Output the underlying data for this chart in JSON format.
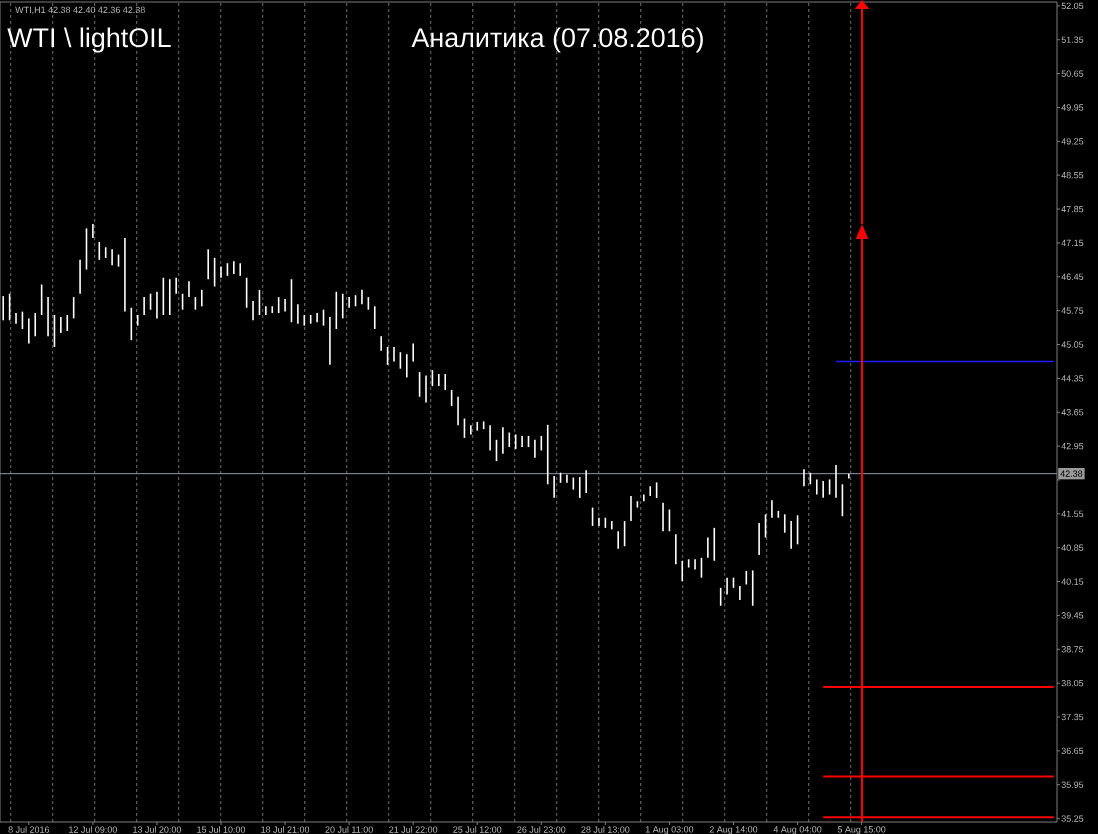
{
  "chart_data": {
    "type": "bar",
    "title": "WTI \\ lightOIL",
    "subtitle": "Аналитика (07.08.2016)",
    "annotations": [
      "WTI,H1 42.38 42.40 42.36 42.38"
    ],
    "categories": [
      null,
      null,
      null,
      null,
      "8 Jul 2016",
      null,
      null,
      null,
      null,
      null,
      null,
      null,
      null,
      null,
      "12 Jul 09:00",
      null,
      null,
      null,
      null,
      null,
      null,
      null,
      null,
      null,
      "13 Jul 20:00",
      null,
      null,
      null,
      null,
      null,
      null,
      null,
      null,
      null,
      "15 Jul 10:00",
      null,
      null,
      null,
      null,
      null,
      null,
      null,
      null,
      null,
      "18 Jul 21:00",
      null,
      null,
      null,
      null,
      null,
      null,
      null,
      null,
      null,
      "20 Jul 11:00",
      null,
      null,
      null,
      null,
      null,
      null,
      null,
      null,
      null,
      "21 Jul 22:00",
      null,
      null,
      null,
      null,
      null,
      null,
      null,
      null,
      null,
      "25 Jul 12:00",
      null,
      null,
      null,
      null,
      null,
      null,
      null,
      null,
      null,
      "26 Jul 23:00",
      null,
      null,
      null,
      null,
      null,
      null,
      null,
      null,
      null,
      "28 Jul 13:00",
      null,
      null,
      null,
      null,
      null,
      null,
      null,
      null,
      null,
      "1 Aug 03:00",
      null,
      null,
      null,
      null,
      null,
      null,
      null,
      null,
      null,
      "2 Aug 14:00",
      null,
      null,
      null,
      null,
      null,
      null,
      null,
      null,
      null,
      "4 Aug 04:00",
      null,
      null,
      null,
      null,
      null,
      null,
      null,
      null,
      null,
      "5 Aug 15:00",
      null,
      null,
      null,
      null,
      null,
      null,
      null,
      null,
      null,
      null,
      null,
      null,
      null,
      null,
      null,
      null,
      null,
      null,
      null,
      null,
      null,
      null,
      null,
      null,
      null,
      null,
      null,
      null,
      null,
      null
    ],
    "ylim": [
      35.18,
      52.13
    ],
    "yticks": [
      35.25,
      35.95,
      36.65,
      37.35,
      38.05,
      38.75,
      39.45,
      40.15,
      40.85,
      41.55,
      {
        "value": 42.25,
        "label": null
      },
      42.95,
      43.65,
      44.35,
      45.05,
      45.75,
      46.45,
      47.15,
      47.85,
      48.55,
      49.25,
      49.95,
      50.65,
      51.35,
      52.05
    ],
    "grid": "x",
    "series": [
      {
        "color": "#ffffff",
        "base": [
          45.55,
          45.55,
          45.48,
          45.37,
          45.07,
          45.22,
          45.66,
          45.22,
          45.0,
          45.29,
          45.33,
          45.59,
          46.1,
          46.6,
          47.25,
          46.8,
          46.84,
          46.69,
          46.66,
          45.73,
          45.14,
          45.44,
          45.66,
          45.77,
          45.59,
          45.66,
          45.66,
          46.1,
          45.77,
          46.03,
          45.77,
          45.84,
          46.4,
          46.25,
          46.43,
          46.47,
          46.51,
          46.47,
          45.81,
          45.55,
          45.66,
          45.66,
          45.7,
          45.7,
          45.73,
          45.51,
          45.48,
          45.44,
          45.48,
          45.51,
          45.44,
          44.63,
          45.37,
          45.59,
          45.81,
          45.84,
          45.88,
          45.77,
          45.37,
          44.92,
          44.63,
          44.7,
          44.55,
          44.37,
          44.7,
          43.97,
          43.85,
          44.19,
          44.19,
          44.11,
          43.78,
          43.38,
          43.12,
          43.19,
          43.27,
          43.3,
          42.86,
          42.64,
          42.79,
          42.93,
          42.89,
          42.93,
          42.93,
          42.71,
          42.86,
          42.16,
          41.88,
          42.19,
          42.19,
          42.05,
          41.88,
          41.98,
          41.3,
          41.3,
          41.26,
          41.23,
          40.83,
          40.88,
          41.4,
          41.68,
          41.81,
          41.92,
          41.88,
          41.19,
          41.19,
          40.51,
          40.16,
          40.44,
          40.4,
          40.23,
          40.64,
          40.58,
          39.65,
          39.88,
          40.02,
          39.77,
          40.09,
          39.65,
          40.7,
          41.06,
          41.47,
          41.47,
          41.16,
          40.83,
          40.92,
          42.12,
          42.16,
          41.95,
          41.88,
          41.95,
          41.88,
          41.5,
          42.28,
          null,
          null,
          null,
          null,
          null,
          null,
          null,
          null,
          null,
          null,
          null,
          null,
          null,
          null,
          null,
          null,
          null,
          null,
          null,
          null,
          null,
          null,
          null,
          null,
          null,
          null,
          null,
          null,
          null,
          null,
          null,
          null
        ],
        "values": [
          0.5,
          0.55,
          0.22,
          0.36,
          0.52,
          0.48,
          0.63,
          0.81,
          0.66,
          0.33,
          0.33,
          0.44,
          0.7,
          0.85,
          0.29,
          0.37,
          0.22,
          0.33,
          0.25,
          1.52,
          0.67,
          0.22,
          0.37,
          0.33,
          0.55,
          0.77,
          0.74,
          0.33,
          0.33,
          0.33,
          0.26,
          0.34,
          0.62,
          0.59,
          0.23,
          0.26,
          0.26,
          0.26,
          0.62,
          0.4,
          0.52,
          0.18,
          0.14,
          0.33,
          0.26,
          0.89,
          0.4,
          0.22,
          0.18,
          0.19,
          0.33,
          0.99,
          0.77,
          0.51,
          0.22,
          0.23,
          0.3,
          0.26,
          0.47,
          0.3,
          0.37,
          0.3,
          0.34,
          0.48,
          0.37,
          0.51,
          0.56,
          0.33,
          0.25,
          0.33,
          0.33,
          0.59,
          0.4,
          0.19,
          0.18,
          0.16,
          0.52,
          0.44,
          0.55,
          0.3,
          0.3,
          0.23,
          0.23,
          0.37,
          0.3,
          1.23,
          0.45,
          0.21,
          0.17,
          0.25,
          0.43,
          0.47,
          0.38,
          0.17,
          0.21,
          0.17,
          0.36,
          0.52,
          0.52,
          0.13,
          0.14,
          0.2,
          0.32,
          0.59,
          0.45,
          0.62,
          0.42,
          0.17,
          0.21,
          0.41,
          0.42,
          0.68,
          0.37,
          0.35,
          0.21,
          0.29,
          0.28,
          0.73,
          0.66,
          0.48,
          0.36,
          0.14,
          0.38,
          0.57,
          0.6,
          0.35,
          0.24,
          0.31,
          0.35,
          0.31,
          0.68,
          0.66,
          0.1,
          null,
          null,
          null,
          null,
          null,
          null,
          null,
          null,
          null,
          null,
          null,
          null,
          null,
          null,
          null,
          null,
          null,
          null,
          null,
          null,
          null,
          null,
          null,
          null,
          null,
          null,
          null,
          null,
          null,
          null,
          null,
          null
        ]
      },
      {
        "type": "line",
        "color": "#1e1eff",
        "values": [
          null,
          null,
          null,
          null,
          null,
          null,
          null,
          null,
          null,
          null,
          null,
          null,
          null,
          null,
          null,
          null,
          null,
          null,
          null,
          null,
          null,
          null,
          null,
          null,
          null,
          null,
          null,
          null,
          null,
          null,
          null,
          null,
          null,
          null,
          null,
          null,
          null,
          null,
          null,
          null,
          null,
          null,
          null,
          null,
          null,
          null,
          null,
          null,
          null,
          null,
          null,
          null,
          null,
          null,
          null,
          null,
          null,
          null,
          null,
          null,
          null,
          null,
          null,
          null,
          null,
          null,
          null,
          null,
          null,
          null,
          null,
          null,
          null,
          null,
          null,
          null,
          null,
          null,
          null,
          null,
          null,
          null,
          null,
          null,
          null,
          null,
          null,
          null,
          null,
          null,
          null,
          null,
          null,
          null,
          null,
          null,
          null,
          null,
          null,
          null,
          null,
          null,
          null,
          null,
          null,
          null,
          null,
          null,
          null,
          null,
          null,
          null,
          null,
          null,
          null,
          null,
          null,
          null,
          null,
          null,
          null,
          null,
          null,
          null,
          null,
          null,
          null,
          null,
          null,
          null,
          44.7,
          44.7,
          44.7,
          44.7,
          44.7,
          44.7,
          44.7,
          44.7,
          44.7,
          44.7,
          44.7,
          44.7,
          44.7,
          44.7,
          44.7,
          44.7,
          44.7,
          44.7,
          44.7,
          44.7,
          44.7,
          44.7,
          44.7,
          44.7,
          44.7,
          44.7,
          44.7,
          44.7,
          44.7,
          44.7,
          44.7,
          44.7,
          44.7,
          44.7,
          44.7
        ]
      },
      {
        "type": "line",
        "color": "#ff0000",
        "values": [
          null,
          null,
          null,
          null,
          null,
          null,
          null,
          null,
          null,
          null,
          null,
          null,
          null,
          null,
          null,
          null,
          null,
          null,
          null,
          null,
          null,
          null,
          null,
          null,
          null,
          null,
          null,
          null,
          null,
          null,
          null,
          null,
          null,
          null,
          null,
          null,
          null,
          null,
          null,
          null,
          null,
          null,
          null,
          null,
          null,
          null,
          null,
          null,
          null,
          null,
          null,
          null,
          null,
          null,
          null,
          null,
          null,
          null,
          null,
          null,
          null,
          null,
          null,
          null,
          null,
          null,
          null,
          null,
          null,
          null,
          null,
          null,
          null,
          null,
          null,
          null,
          null,
          null,
          null,
          null,
          null,
          null,
          null,
          null,
          null,
          null,
          null,
          null,
          null,
          null,
          null,
          null,
          null,
          null,
          null,
          null,
          null,
          null,
          null,
          null,
          null,
          null,
          null,
          null,
          null,
          null,
          null,
          null,
          null,
          null,
          null,
          null,
          null,
          null,
          null,
          null,
          null,
          null,
          null,
          null,
          null,
          null,
          null,
          null,
          null,
          null,
          null,
          null,
          37.97,
          37.97,
          37.97,
          37.97,
          37.97,
          37.97,
          37.97,
          37.97,
          37.97,
          37.97,
          37.97,
          37.97,
          37.97,
          37.97,
          37.97,
          37.97,
          37.97,
          37.97,
          37.97,
          37.97,
          37.97,
          37.97,
          37.97,
          37.97,
          37.97,
          37.97,
          37.97,
          37.97,
          37.97,
          37.97,
          37.97,
          37.97,
          37.97,
          37.97,
          37.97,
          37.97,
          37.97
        ]
      },
      {
        "type": "line",
        "color": "#ff0000",
        "values": [
          null,
          null,
          null,
          null,
          null,
          null,
          null,
          null,
          null,
          null,
          null,
          null,
          null,
          null,
          null,
          null,
          null,
          null,
          null,
          null,
          null,
          null,
          null,
          null,
          null,
          null,
          null,
          null,
          null,
          null,
          null,
          null,
          null,
          null,
          null,
          null,
          null,
          null,
          null,
          null,
          null,
          null,
          null,
          null,
          null,
          null,
          null,
          null,
          null,
          null,
          null,
          null,
          null,
          null,
          null,
          null,
          null,
          null,
          null,
          null,
          null,
          null,
          null,
          null,
          null,
          null,
          null,
          null,
          null,
          null,
          null,
          null,
          null,
          null,
          null,
          null,
          null,
          null,
          null,
          null,
          null,
          null,
          null,
          null,
          null,
          null,
          null,
          null,
          null,
          null,
          null,
          null,
          null,
          null,
          null,
          null,
          null,
          null,
          null,
          null,
          null,
          null,
          null,
          null,
          null,
          null,
          null,
          null,
          null,
          null,
          null,
          null,
          null,
          null,
          null,
          null,
          null,
          null,
          null,
          null,
          null,
          null,
          null,
          null,
          null,
          null,
          null,
          null,
          36.12,
          36.12,
          36.12,
          36.12,
          36.12,
          36.12,
          36.12,
          36.12,
          36.12,
          36.12,
          36.12,
          36.12,
          36.12,
          36.12,
          36.12,
          36.12,
          36.12,
          36.12,
          36.12,
          36.12,
          36.12,
          36.12,
          36.12,
          36.12,
          36.12,
          36.12,
          36.12,
          36.12,
          36.12,
          36.12,
          36.12,
          36.12,
          36.12,
          36.12,
          36.12,
          36.12,
          36.12
        ]
      },
      {
        "type": "line",
        "color": "#ff0000",
        "values": [
          null,
          null,
          null,
          null,
          null,
          null,
          null,
          null,
          null,
          null,
          null,
          null,
          null,
          null,
          null,
          null,
          null,
          null,
          null,
          null,
          null,
          null,
          null,
          null,
          null,
          null,
          null,
          null,
          null,
          null,
          null,
          null,
          null,
          null,
          null,
          null,
          null,
          null,
          null,
          null,
          null,
          null,
          null,
          null,
          null,
          null,
          null,
          null,
          null,
          null,
          null,
          null,
          null,
          null,
          null,
          null,
          null,
          null,
          null,
          null,
          null,
          null,
          null,
          null,
          null,
          null,
          null,
          null,
          null,
          null,
          null,
          null,
          null,
          null,
          null,
          null,
          null,
          null,
          null,
          null,
          null,
          null,
          null,
          null,
          null,
          null,
          null,
          null,
          null,
          null,
          null,
          null,
          null,
          null,
          null,
          null,
          null,
          null,
          null,
          null,
          null,
          null,
          null,
          null,
          null,
          null,
          null,
          null,
          null,
          null,
          null,
          null,
          null,
          null,
          null,
          null,
          null,
          null,
          null,
          null,
          null,
          null,
          null,
          null,
          null,
          null,
          null,
          null,
          35.28,
          35.28,
          35.28,
          35.28,
          35.28,
          35.28,
          35.28,
          35.28,
          35.28,
          35.28,
          35.28,
          35.28,
          35.28,
          35.28,
          35.28,
          35.28,
          35.28,
          35.28,
          35.28,
          35.28,
          35.28,
          35.28,
          35.28,
          35.28,
          35.28,
          35.28,
          35.28,
          35.28,
          35.28,
          35.28,
          35.28,
          35.28,
          35.28,
          35.28,
          35.28,
          35.28,
          35.28
        ]
      }
    ],
    "ref_lines": [
      {
        "axis": "y",
        "value": 42.38,
        "label": "42.38",
        "color": "#8a9bb0"
      }
    ]
  }
}
